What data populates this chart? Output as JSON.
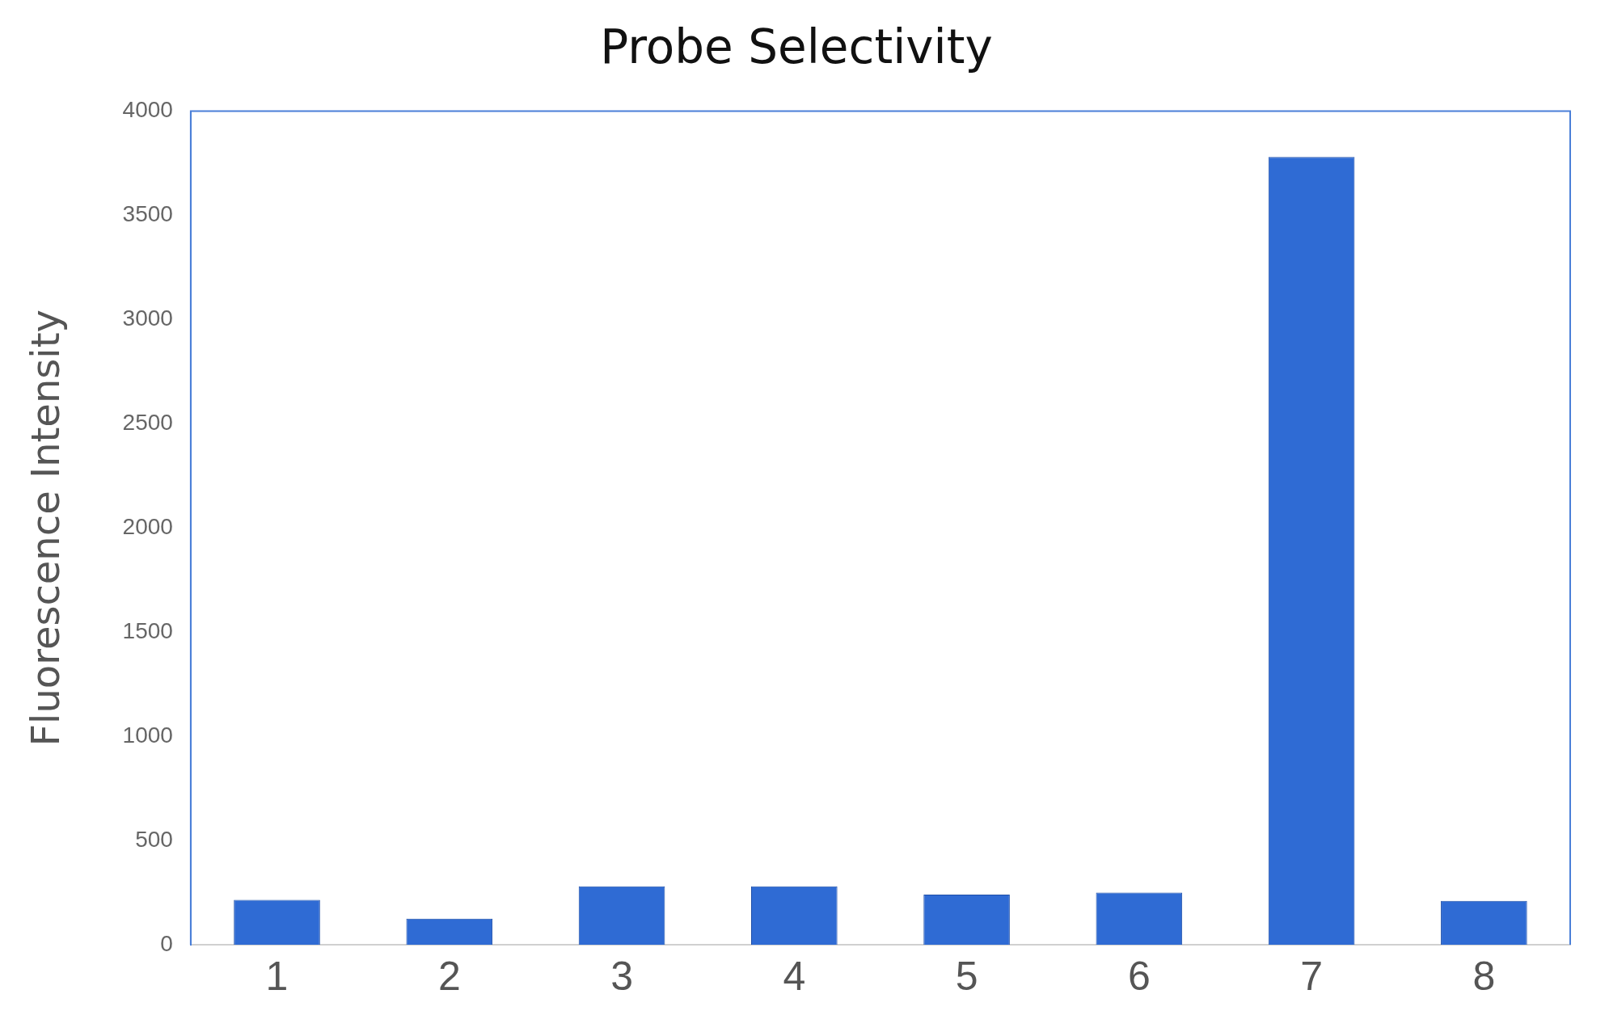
{
  "chart_data": {
    "type": "bar",
    "title": "Probe Selectivity",
    "ylabel": "Fluorescence Intensity",
    "categories": [
      "1",
      "2",
      "3",
      "4",
      "5",
      "6",
      "7",
      "8"
    ],
    "values": [
      215,
      125,
      280,
      280,
      240,
      250,
      3780,
      210
    ],
    "color": "#2f6bd4",
    "ylim": [
      0,
      4000
    ],
    "yticks": [
      0,
      500,
      1000,
      1500,
      2000,
      2500,
      3000,
      3500,
      4000
    ],
    "grid": false,
    "legend": false
  }
}
